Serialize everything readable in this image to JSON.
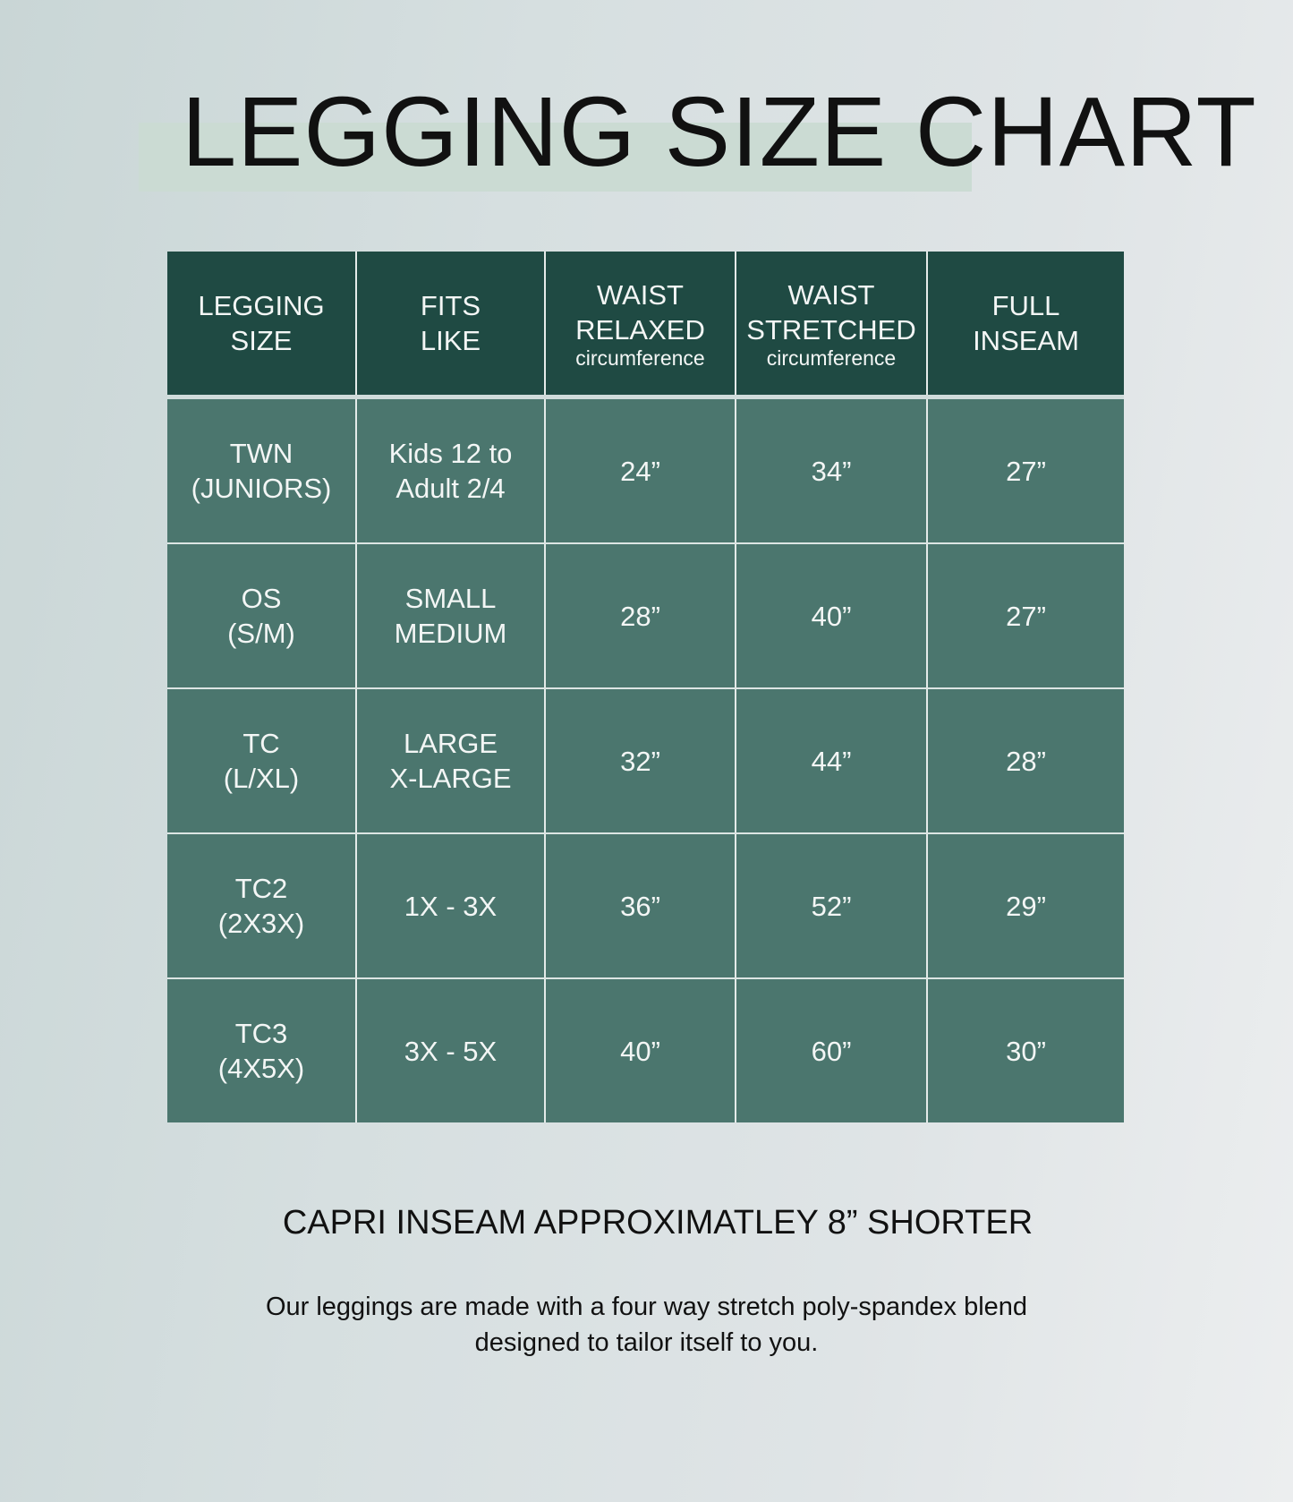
{
  "title": "LEGGING SIZE CHART",
  "headers": [
    {
      "lines": [
        "LEGGING",
        "SIZE"
      ],
      "sub": ""
    },
    {
      "lines": [
        "FITS",
        "LIKE"
      ],
      "sub": ""
    },
    {
      "lines": [
        "WAIST",
        "RELAXED"
      ],
      "sub": "circumference"
    },
    {
      "lines": [
        "WAIST",
        "STRETCHED"
      ],
      "sub": "circumference"
    },
    {
      "lines": [
        "FULL",
        "INSEAM"
      ],
      "sub": ""
    }
  ],
  "rows": [
    {
      "size": [
        "TWN",
        "(JUNIORS)"
      ],
      "fits": [
        "Kids 12 to",
        "Adult 2/4"
      ],
      "relaxed": "24”",
      "stretched": "34”",
      "inseam": "27”"
    },
    {
      "size": [
        "OS",
        "(S/M)"
      ],
      "fits": [
        "SMALL",
        "MEDIUM"
      ],
      "relaxed": "28”",
      "stretched": "40”",
      "inseam": "27”"
    },
    {
      "size": [
        "TC",
        "(L/XL)"
      ],
      "fits": [
        "LARGE",
        "X-LARGE"
      ],
      "relaxed": "32”",
      "stretched": "44”",
      "inseam": "28”"
    },
    {
      "size": [
        "TC2",
        "(2X3X)"
      ],
      "fits": [
        "1X - 3X",
        ""
      ],
      "relaxed": "36”",
      "stretched": "52”",
      "inseam": "29”"
    },
    {
      "size": [
        "TC3",
        "(4X5X)"
      ],
      "fits": [
        "3X - 5X",
        ""
      ],
      "relaxed": "40”",
      "stretched": "60”",
      "inseam": "30”"
    }
  ],
  "capri": "CAPRI INSEAM APPROXIMATLEY 8” SHORTER",
  "description": [
    "Our leggings are made with a four way stretch poly-spandex blend",
    "designed to tailor itself to you."
  ],
  "colors": {
    "header": "#1f4a43",
    "row": "#4b766e",
    "highlight": "#cbdbd3"
  }
}
